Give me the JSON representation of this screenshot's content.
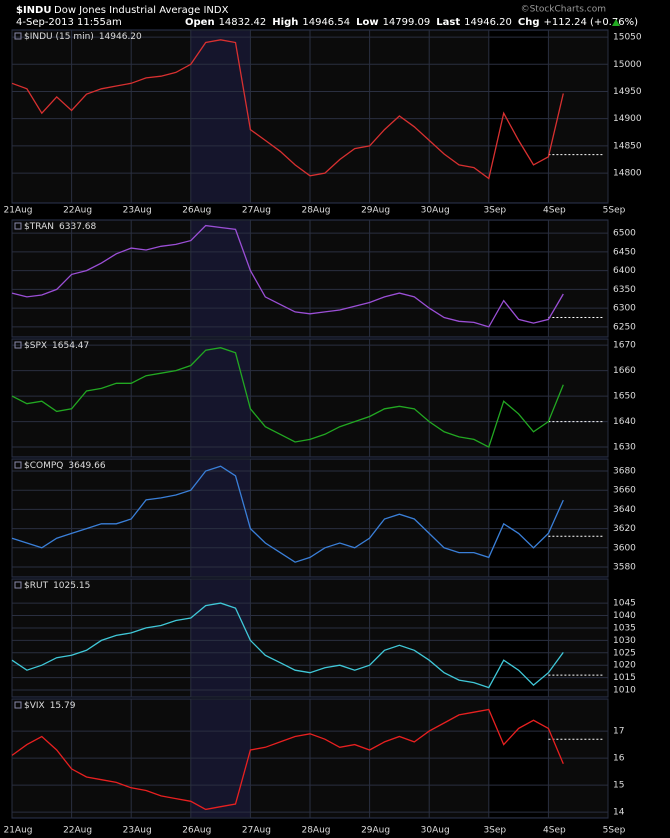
{
  "header": {
    "symbol": "$INDU",
    "name": "Dow Jones Industrial Average INDX",
    "date": "4-Sep-2013 11:55am",
    "source": "©StockCharts.com",
    "stats": [
      [
        "Open",
        "14832.42"
      ],
      [
        "High",
        "14946.54"
      ],
      [
        "Low",
        "14799.09"
      ],
      [
        "Last",
        "14946.20"
      ],
      [
        "Chg",
        "+112.24 (+0.76%)"
      ]
    ]
  },
  "chart_data": [
    {
      "type": "line",
      "title": "$INDU (15 min)",
      "last": "14946.20",
      "color": "#d83030",
      "x": [
        0,
        0.25,
        0.5,
        0.75,
        1,
        1.25,
        1.5,
        1.75,
        2,
        2.25,
        2.5,
        2.75,
        3,
        3.25,
        3.5,
        3.75,
        4,
        4.25,
        4.5,
        4.75,
        5,
        5.25,
        5.5,
        5.75,
        6,
        6.25,
        6.5,
        6.75,
        7,
        7.25,
        7.5,
        7.75,
        8,
        8.25,
        8.5,
        8.75,
        9,
        9.25
      ],
      "values": [
        14965,
        14955,
        14910,
        14940,
        14915,
        14945,
        14955,
        14960,
        14965,
        14975,
        14978,
        14985,
        15000,
        15040,
        15045,
        15040,
        14880,
        14860,
        14840,
        14815,
        14795,
        14800,
        14825,
        14845,
        14850,
        14880,
        14905,
        14885,
        14860,
        14835,
        14815,
        14810,
        14790,
        14910,
        14860,
        14815,
        14830,
        14946.2
      ],
      "reference": 14834,
      "xlim": [
        0,
        10
      ],
      "ylim": [
        14745,
        15063
      ],
      "yticks": [
        14800,
        14850,
        14900,
        14950,
        15000,
        15050
      ],
      "xticks": [
        {
          "value": 0,
          "label": "21Aug"
        },
        {
          "value": 1,
          "label": "22Aug"
        },
        {
          "value": 2,
          "label": "23Aug"
        },
        {
          "value": 3,
          "label": "26Aug"
        },
        {
          "value": 4,
          "label": "27Aug"
        },
        {
          "value": 5,
          "label": "28Aug"
        },
        {
          "value": 6,
          "label": "29Aug"
        },
        {
          "value": 7,
          "label": "30Aug"
        },
        {
          "value": 8,
          "label": "3Sep"
        },
        {
          "value": 9,
          "label": "4Sep"
        },
        {
          "value": 10,
          "label": "5Sep"
        }
      ],
      "grid": true
    },
    {
      "type": "line",
      "title": "$TRAN",
      "last": "6337.68",
      "color": "#9b4fd6",
      "x": [
        0,
        0.25,
        0.5,
        0.75,
        1,
        1.25,
        1.5,
        1.75,
        2,
        2.25,
        2.5,
        2.75,
        3,
        3.25,
        3.5,
        3.75,
        4,
        4.25,
        4.5,
        4.75,
        5,
        5.25,
        5.5,
        5.75,
        6,
        6.25,
        6.5,
        6.75,
        7,
        7.25,
        7.5,
        7.75,
        8,
        8.25,
        8.5,
        8.75,
        9,
        9.25
      ],
      "values": [
        6340,
        6330,
        6335,
        6350,
        6390,
        6400,
        6420,
        6445,
        6460,
        6455,
        6465,
        6470,
        6480,
        6520,
        6515,
        6510,
        6400,
        6330,
        6310,
        6290,
        6285,
        6290,
        6295,
        6305,
        6315,
        6330,
        6340,
        6330,
        6300,
        6275,
        6265,
        6262,
        6250,
        6320,
        6270,
        6260,
        6270,
        6337.68
      ],
      "reference": 6275,
      "xlim": [
        0,
        10
      ],
      "ylim": [
        6223,
        6535
      ],
      "yticks": [
        6250,
        6300,
        6350,
        6400,
        6450,
        6500
      ],
      "grid": true
    },
    {
      "type": "line",
      "title": "$SPX",
      "last": "1654.47",
      "color": "#22a822",
      "x": [
        0,
        0.25,
        0.5,
        0.75,
        1,
        1.25,
        1.5,
        1.75,
        2,
        2.25,
        2.5,
        2.75,
        3,
        3.25,
        3.5,
        3.75,
        4,
        4.25,
        4.5,
        4.75,
        5,
        5.25,
        5.5,
        5.75,
        6,
        6.25,
        6.5,
        6.75,
        7,
        7.25,
        7.5,
        7.75,
        8,
        8.25,
        8.5,
        8.75,
        9,
        9.25
      ],
      "values": [
        1650,
        1647,
        1648,
        1644,
        1645,
        1652,
        1653,
        1655,
        1655,
        1658,
        1659,
        1660,
        1662,
        1668,
        1669,
        1667,
        1645,
        1638,
        1635,
        1632,
        1633,
        1635,
        1638,
        1640,
        1642,
        1645,
        1646,
        1645,
        1640,
        1636,
        1634,
        1633,
        1630,
        1648,
        1643,
        1636,
        1640,
        1654.47
      ],
      "reference": 1640,
      "xlim": [
        0,
        10
      ],
      "ylim": [
        1626.1,
        1672.4
      ],
      "yticks": [
        1630,
        1640,
        1650,
        1660,
        1670
      ],
      "grid": true
    },
    {
      "type": "line",
      "title": "$COMPQ",
      "last": "3649.66",
      "color": "#3a7fd8",
      "x": [
        0,
        0.25,
        0.5,
        0.75,
        1,
        1.25,
        1.5,
        1.75,
        2,
        2.25,
        2.5,
        2.75,
        3,
        3.25,
        3.5,
        3.75,
        4,
        4.25,
        4.5,
        4.75,
        5,
        5.25,
        5.5,
        5.75,
        6,
        6.25,
        6.5,
        6.75,
        7,
        7.25,
        7.5,
        7.75,
        8,
        8.25,
        8.5,
        8.75,
        9,
        9.25
      ],
      "values": [
        3610,
        3605,
        3600,
        3610,
        3615,
        3620,
        3625,
        3625,
        3630,
        3650,
        3652,
        3655,
        3660,
        3680,
        3685,
        3675,
        3620,
        3605,
        3595,
        3585,
        3590,
        3600,
        3605,
        3600,
        3610,
        3630,
        3635,
        3630,
        3615,
        3600,
        3595,
        3595,
        3590,
        3625,
        3615,
        3600,
        3615,
        3649.66
      ],
      "reference": 3612,
      "xlim": [
        0,
        10
      ],
      "ylim": [
        3569.6,
        3692.5
      ],
      "yticks": [
        3580,
        3600,
        3620,
        3640,
        3660,
        3680
      ],
      "grid": true
    },
    {
      "type": "line",
      "title": "$RUT",
      "last": "1025.15",
      "color": "#40c8d8",
      "x": [
        0,
        0.25,
        0.5,
        0.75,
        1,
        1.25,
        1.5,
        1.75,
        2,
        2.25,
        2.5,
        2.75,
        3,
        3.25,
        3.5,
        3.75,
        4,
        4.25,
        4.5,
        4.75,
        5,
        5.25,
        5.5,
        5.75,
        6,
        6.25,
        6.5,
        6.75,
        7,
        7.25,
        7.5,
        7.75,
        8,
        8.25,
        8.5,
        8.75,
        9,
        9.25
      ],
      "values": [
        1022,
        1018,
        1020,
        1023,
        1024,
        1026,
        1030,
        1032,
        1033,
        1035,
        1036,
        1038,
        1039,
        1044,
        1045,
        1043,
        1030,
        1024,
        1021,
        1018,
        1017,
        1019,
        1020,
        1018,
        1020,
        1026,
        1028,
        1026,
        1022,
        1017,
        1014,
        1013,
        1011,
        1022,
        1018,
        1012,
        1017,
        1025.15
      ],
      "reference": 1016,
      "xlim": [
        0,
        10
      ],
      "ylim": [
        1007.2,
        1054.7
      ],
      "yticks": [
        1010,
        1015,
        1020,
        1025,
        1030,
        1035,
        1040,
        1045
      ],
      "grid": true
    },
    {
      "type": "line",
      "title": "$VIX",
      "last": "15.79",
      "color": "#e82020",
      "x": [
        0,
        0.25,
        0.5,
        0.75,
        1,
        1.25,
        1.5,
        1.75,
        2,
        2.25,
        2.5,
        2.75,
        3,
        3.25,
        3.5,
        3.75,
        4,
        4.25,
        4.5,
        4.75,
        5,
        5.25,
        5.5,
        5.75,
        6,
        6.25,
        6.5,
        6.75,
        7,
        7.25,
        7.5,
        7.75,
        8,
        8.25,
        8.5,
        8.75,
        9,
        9.25
      ],
      "values": [
        16.1,
        16.5,
        16.8,
        16.3,
        15.6,
        15.3,
        15.2,
        15.1,
        14.9,
        14.8,
        14.6,
        14.5,
        14.4,
        14.1,
        14.2,
        14.3,
        16.3,
        16.4,
        16.6,
        16.8,
        16.9,
        16.7,
        16.4,
        16.5,
        16.3,
        16.6,
        16.8,
        16.6,
        17.0,
        17.3,
        17.6,
        17.7,
        17.8,
        16.5,
        17.1,
        17.4,
        17.1,
        15.79
      ],
      "reference": 16.7,
      "xlim": [
        0,
        10
      ],
      "ylim": [
        13.78,
        18.19
      ],
      "yticks": [
        14,
        15,
        16,
        17
      ],
      "xticks": [
        {
          "value": 0,
          "label": "21Aug"
        },
        {
          "value": 1,
          "label": "22Aug"
        },
        {
          "value": 2,
          "label": "23Aug"
        },
        {
          "value": 3,
          "label": "26Aug"
        },
        {
          "value": 4,
          "label": "27Aug"
        },
        {
          "value": 5,
          "label": "28Aug"
        },
        {
          "value": 6,
          "label": "29Aug"
        },
        {
          "value": 7,
          "label": "30Aug"
        },
        {
          "value": 8,
          "label": "3Sep"
        },
        {
          "value": 9,
          "label": "4Sep"
        },
        {
          "value": 10,
          "label": "5Sep"
        }
      ],
      "grid": true
    }
  ]
}
